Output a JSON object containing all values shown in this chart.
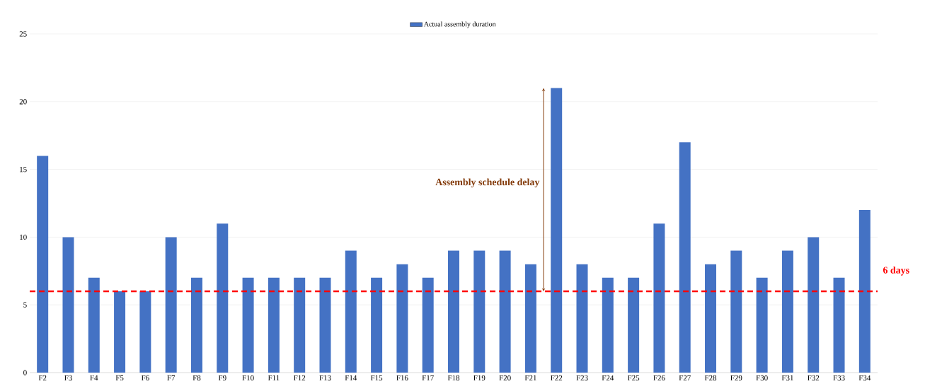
{
  "chart_data": {
    "type": "bar",
    "categories": [
      "F2",
      "F3",
      "F4",
      "F5",
      "F6",
      "F7",
      "F8",
      "F9",
      "F10",
      "F11",
      "F12",
      "F13",
      "F14",
      "F15",
      "F16",
      "F17",
      "F18",
      "F19",
      "F20",
      "F21",
      "F22",
      "F23",
      "F24",
      "F25",
      "F26",
      "F27",
      "F28",
      "F29",
      "F30",
      "F31",
      "F32",
      "F33",
      "F34"
    ],
    "series": [
      {
        "name": "Actual assembly duration",
        "color": "#4472c4",
        "values": [
          16,
          10,
          7,
          6,
          6,
          10,
          7,
          11,
          7,
          7,
          7,
          7,
          9,
          7,
          8,
          7,
          9,
          9,
          9,
          8,
          21,
          8,
          7,
          7,
          11,
          17,
          8,
          9,
          7,
          9,
          10,
          7,
          12
        ]
      }
    ],
    "ylim": [
      0,
      25
    ],
    "yticks": [
      0,
      5,
      10,
      15,
      20,
      25
    ],
    "grid": "y",
    "legend": "top",
    "ref_lines": [
      {
        "axis": "y",
        "value": 6,
        "label": "6 days",
        "color": "#ff0000",
        "line_style": "dashed"
      }
    ],
    "annotations": [
      "Assembly schedule delay"
    ]
  }
}
